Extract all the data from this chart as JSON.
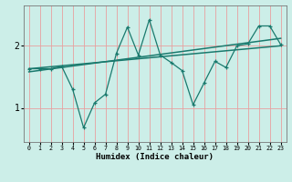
{
  "xlabel": "Humidex (Indice chaleur)",
  "bg_color": "#cceee8",
  "line_color": "#1a7a6e",
  "grid_color": "#e8a0a0",
  "zigzag_x": [
    0,
    1,
    2,
    3,
    4,
    5,
    6,
    7,
    8,
    9,
    10,
    11,
    12,
    13,
    14,
    15,
    16,
    17,
    18,
    19,
    20,
    21,
    22,
    23
  ],
  "zigzag_y": [
    1.63,
    1.63,
    1.63,
    1.67,
    1.3,
    0.68,
    1.08,
    1.22,
    1.88,
    2.3,
    1.85,
    2.42,
    1.85,
    1.73,
    1.6,
    1.05,
    1.4,
    1.75,
    1.65,
    2.0,
    2.03,
    2.32,
    2.32,
    2.02
  ],
  "trend1_x": [
    0,
    23
  ],
  "trend1_y": [
    1.58,
    2.12
  ],
  "trend2_x": [
    0,
    23
  ],
  "trend2_y": [
    1.63,
    2.0
  ],
  "ylim": [
    0.45,
    2.65
  ],
  "xlim": [
    -0.5,
    23.5
  ],
  "yticks": [
    1,
    2
  ],
  "xticks": [
    0,
    1,
    2,
    3,
    4,
    5,
    6,
    7,
    8,
    9,
    10,
    11,
    12,
    13,
    14,
    15,
    16,
    17,
    18,
    19,
    20,
    21,
    22,
    23
  ]
}
